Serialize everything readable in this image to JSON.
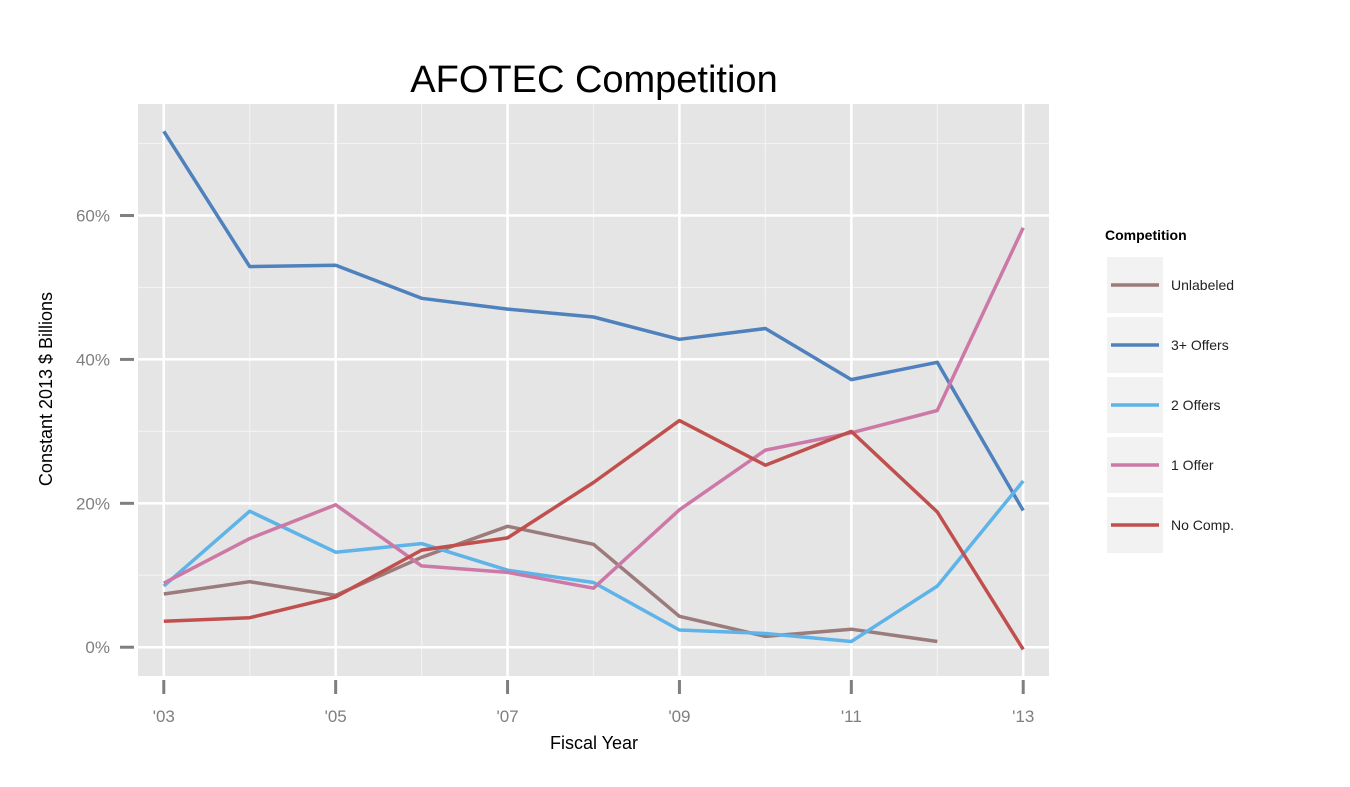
{
  "chart_data": {
    "type": "line",
    "title": "AFOTEC Competition",
    "xlabel": "Fiscal Year",
    "ylabel": "Constant 2013 $ Billions",
    "x": [
      2003,
      2004,
      2005,
      2006,
      2007,
      2008,
      2009,
      2010,
      2011,
      2012,
      2013
    ],
    "xticks": [
      2003,
      2005,
      2007,
      2009,
      2011,
      2013
    ],
    "xtick_labels": [
      "'03",
      "'05",
      "'07",
      "'09",
      "'11",
      "'13"
    ],
    "xlim": [
      2002.7,
      2013.3
    ],
    "yticks": [
      0,
      0.2,
      0.4,
      0.6
    ],
    "ytick_labels": [
      "0%",
      "20%",
      "40%",
      "60%"
    ],
    "ylim": [
      -0.04,
      0.755
    ],
    "grid": true,
    "legend": {
      "title": "Competition",
      "position": "right"
    },
    "series": [
      {
        "name": "Unlabeled",
        "color": "#9b7b7b",
        "values": [
          0.074,
          0.091,
          0.072,
          0.125,
          0.168,
          0.143,
          0.043,
          0.015,
          0.025,
          0.008,
          null
        ]
      },
      {
        "name": "3+ Offers",
        "color": "#4f81bd",
        "values": [
          0.717,
          0.529,
          0.531,
          0.485,
          0.47,
          0.459,
          0.428,
          0.443,
          0.372,
          0.396,
          0.19
        ]
      },
      {
        "name": "2 Offers",
        "color": "#5eb3e8",
        "values": [
          0.085,
          0.189,
          0.132,
          0.144,
          0.107,
          0.09,
          0.024,
          0.019,
          0.008,
          0.085,
          0.231
        ]
      },
      {
        "name": "1 Offer",
        "color": "#cc79a7",
        "values": [
          0.089,
          0.151,
          0.198,
          0.113,
          0.104,
          0.082,
          0.191,
          0.274,
          0.298,
          0.329,
          0.583
        ]
      },
      {
        "name": "No Comp.",
        "color": "#c0504d",
        "values": [
          0.036,
          0.041,
          0.07,
          0.135,
          0.152,
          0.229,
          0.315,
          0.253,
          0.3,
          0.188,
          -0.003
        ]
      }
    ]
  }
}
